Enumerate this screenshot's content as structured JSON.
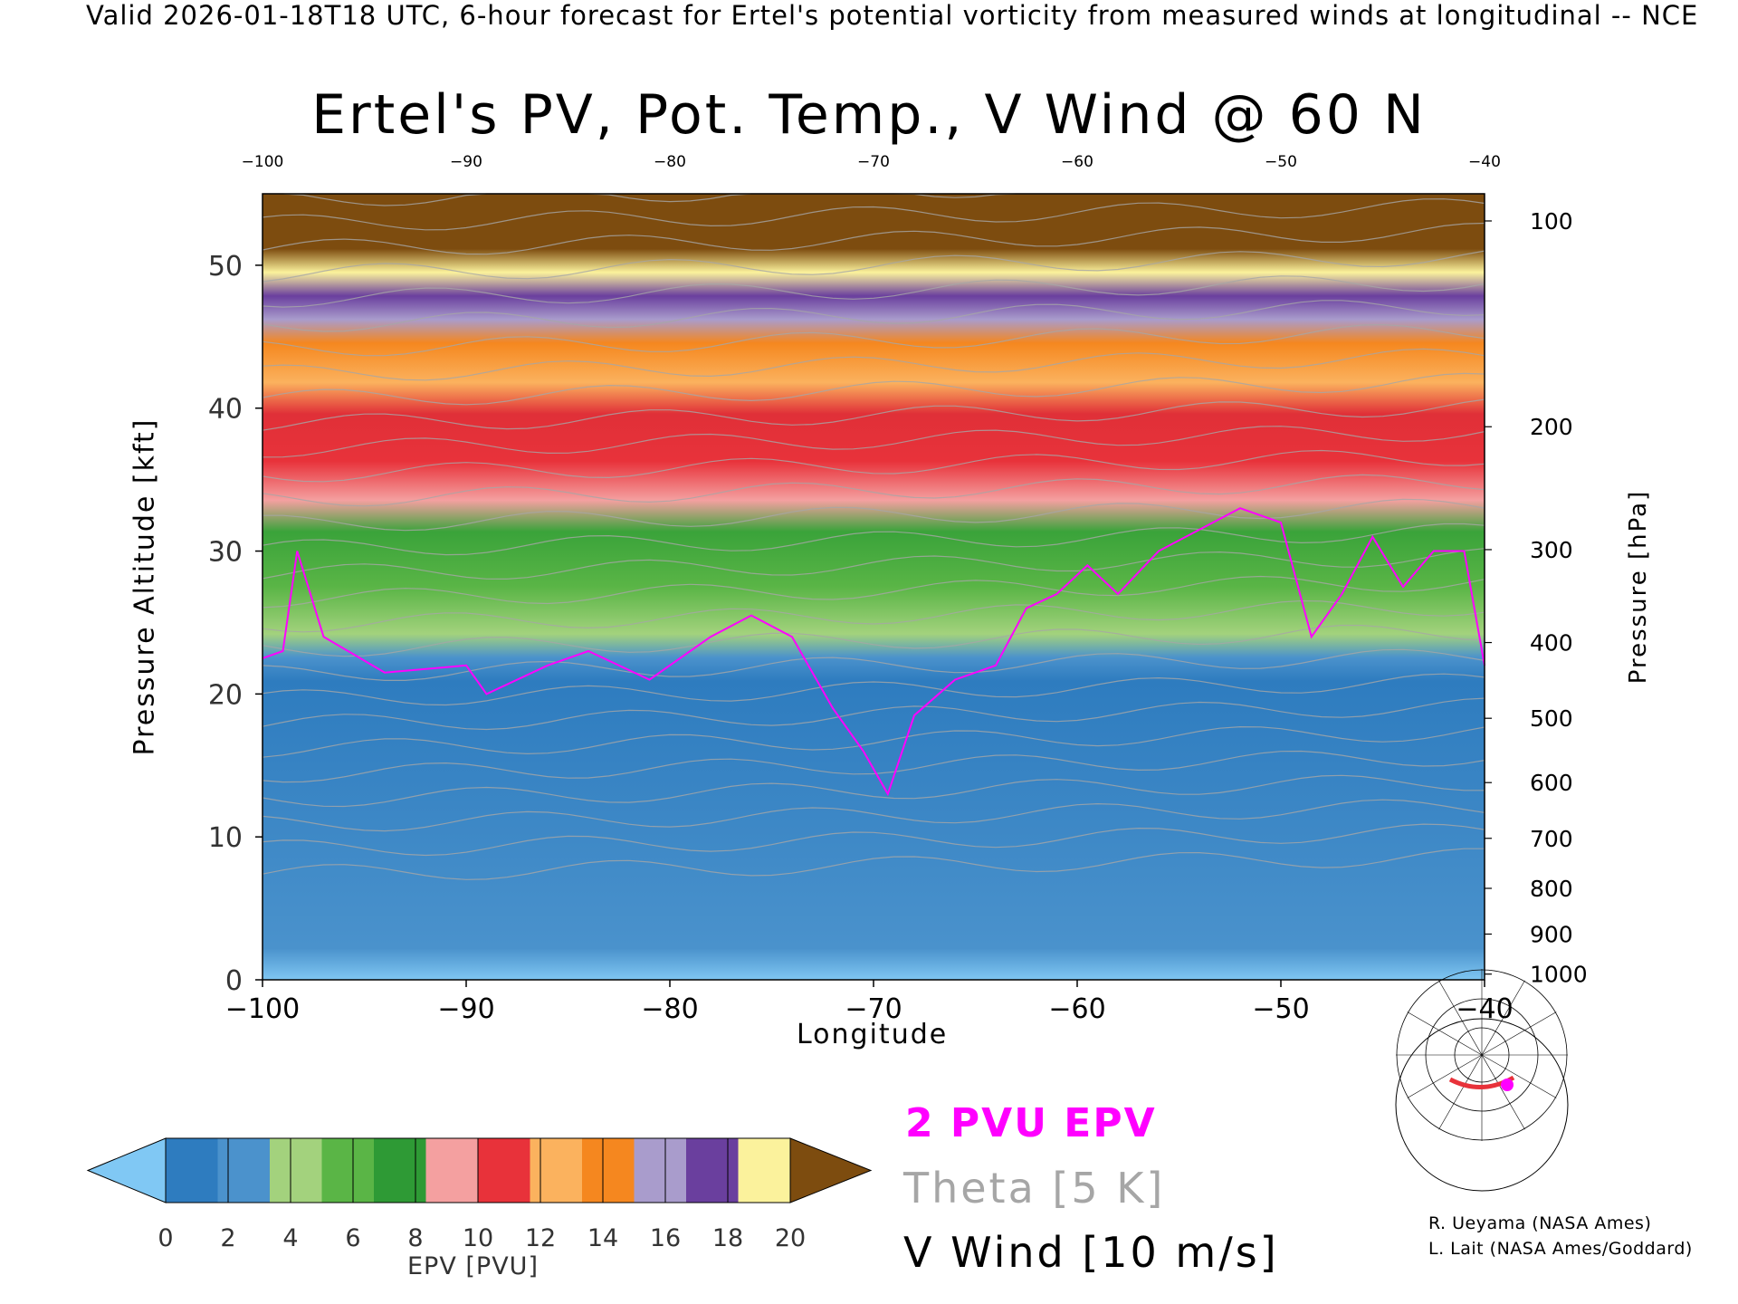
{
  "header": {
    "text": "Valid 2026-01-18T18 UTC, 6-hour forecast for Ertel's potential vorticity from measured winds at longitudinal -- NCE"
  },
  "chart_data": {
    "type": "heatmap",
    "title": "Ertel's PV, Pot. Temp., V Wind @ 60 N",
    "xlabel": "Longitude",
    "ylabel": "Pressure Altitude [kft]",
    "y2label": "Pressure [hPa]",
    "xlim": [
      -100,
      -40
    ],
    "ylim": [
      0,
      55
    ],
    "x_ticks": [
      "−100",
      "−90",
      "−80",
      "−70",
      "−60",
      "−50",
      "−40"
    ],
    "x_ticks_top": [
      "−100",
      "−90",
      "−80",
      "−70",
      "−60",
      "−50",
      "−40"
    ],
    "y_ticks": [
      "0",
      "10",
      "20",
      "30",
      "40",
      "50"
    ],
    "pressure_ticks": [
      {
        "label": "100",
        "kft": 53.1
      },
      {
        "label": "200",
        "kft": 38.7
      },
      {
        "label": "300",
        "kft": 30.1
      },
      {
        "label": "400",
        "kft": 23.6
      },
      {
        "label": "500",
        "kft": 18.3
      },
      {
        "label": "600",
        "kft": 13.8
      },
      {
        "label": "700",
        "kft": 9.9
      },
      {
        "label": "800",
        "kft": 6.4
      },
      {
        "label": "900",
        "kft": 3.2
      },
      {
        "label": "1000",
        "kft": 0.4
      }
    ],
    "two_pvu_height_kft": [
      {
        "lon": -100,
        "kft": 22.5
      },
      {
        "lon": -99,
        "kft": 23
      },
      {
        "lon": -98.3,
        "kft": 30
      },
      {
        "lon": -97,
        "kft": 24
      },
      {
        "lon": -94,
        "kft": 21.5
      },
      {
        "lon": -90,
        "kft": 22
      },
      {
        "lon": -89,
        "kft": 20
      },
      {
        "lon": -86,
        "kft": 22
      },
      {
        "lon": -84,
        "kft": 23
      },
      {
        "lon": -81,
        "kft": 21
      },
      {
        "lon": -78,
        "kft": 24
      },
      {
        "lon": -76,
        "kft": 25.5
      },
      {
        "lon": -74,
        "kft": 24
      },
      {
        "lon": -72,
        "kft": 19
      },
      {
        "lon": -70.5,
        "kft": 16
      },
      {
        "lon": -69.3,
        "kft": 13
      },
      {
        "lon": -68,
        "kft": 18.5
      },
      {
        "lon": -66,
        "kft": 21
      },
      {
        "lon": -64,
        "kft": 22
      },
      {
        "lon": -62.5,
        "kft": 26
      },
      {
        "lon": -61,
        "kft": 27
      },
      {
        "lon": -59.5,
        "kft": 29
      },
      {
        "lon": -58,
        "kft": 27
      },
      {
        "lon": -56,
        "kft": 30
      },
      {
        "lon": -54,
        "kft": 31.5
      },
      {
        "lon": -52,
        "kft": 33
      },
      {
        "lon": -50,
        "kft": 32
      },
      {
        "lon": -48.5,
        "kft": 24
      },
      {
        "lon": -47,
        "kft": 27
      },
      {
        "lon": -45.5,
        "kft": 31
      },
      {
        "lon": -44,
        "kft": 27.5
      },
      {
        "lon": -42.5,
        "kft": 30
      },
      {
        "lon": -41,
        "kft": 30
      },
      {
        "lon": -40,
        "kft": 22
      }
    ],
    "colorbar": {
      "label": "EPV [PVU]",
      "ticks": [
        "0",
        "2",
        "4",
        "6",
        "8",
        "10",
        "12",
        "14",
        "16",
        "18",
        "20"
      ],
      "colors": [
        "#2e7cbf",
        "#4b92cc",
        "#a3d27d",
        "#5ab546",
        "#2e9a35",
        "#f4a0a0",
        "#e8323a",
        "#fbb25e",
        "#f5871f",
        "#a99ccc",
        "#6a3f9e",
        "#fbf29c",
        "#7d4c0f"
      ],
      "under_color": "#80c8f4",
      "over_color": "#7d4c0f"
    }
  },
  "legend": {
    "pv_label": "2 PVU EPV",
    "theta_label": "Theta [5 K]",
    "vwind_label": "V Wind [10 m/s]",
    "pv_color": "#ff00ff",
    "theta_color": "#a6a6a6"
  },
  "credits": {
    "line1": "R. Ueyama (NASA Ames)",
    "line2": "L. Lait (NASA Ames/Goddard)"
  },
  "inset_map": {
    "section_color": "#e8323a",
    "marker_color": "#ff00ff"
  }
}
